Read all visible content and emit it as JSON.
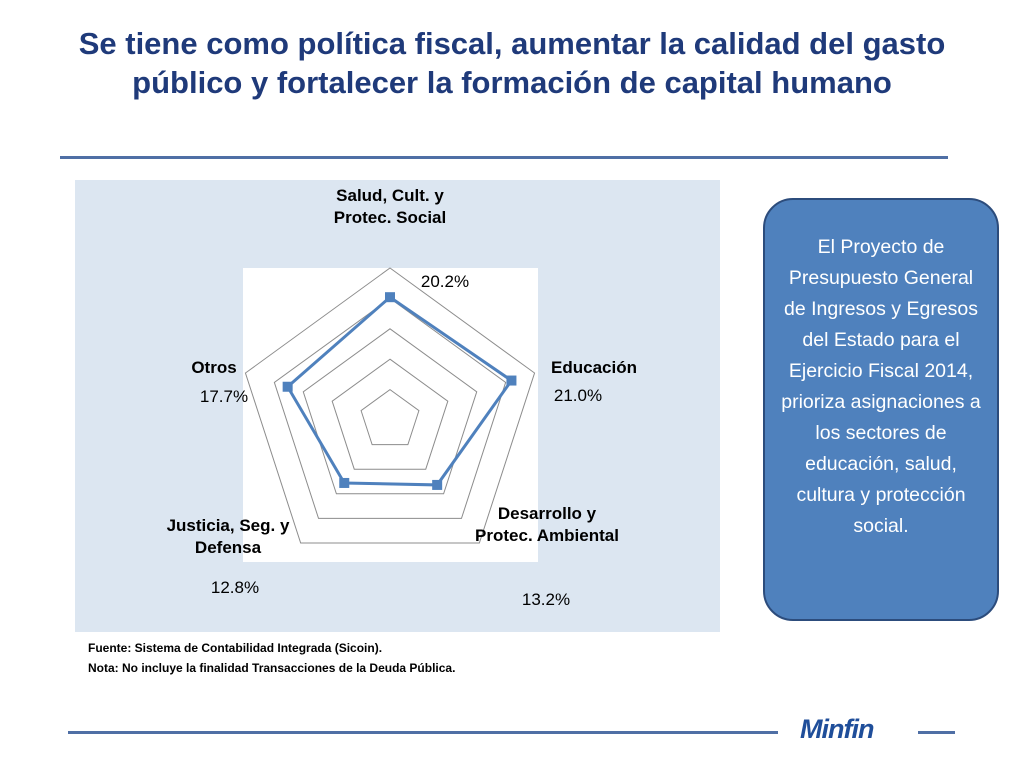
{
  "header": {
    "title": "Se tiene como política fiscal, aumentar la calidad del gasto público y fortalecer la formación de capital humano"
  },
  "chart_data": {
    "type": "radar",
    "categories": [
      "Salud, Cult. y Protec. Social",
      "Educación",
      "Desarrollo y Protec. Ambiental",
      "Justicia, Seg. y Defensa",
      "Otros"
    ],
    "values": [
      20.2,
      21.0,
      13.2,
      12.8,
      17.7
    ],
    "value_labels": [
      "20.2%",
      "21.0%",
      "13.2%",
      "12.8%",
      "17.7%"
    ],
    "color": "#4f81bd",
    "rlim": [
      0,
      25
    ],
    "rticks": [
      5,
      10,
      15,
      20,
      25
    ],
    "grid": true
  },
  "notes": [
    "Fuente: Sistema de Contabilidad Integrada (Sicoin).",
    "Nota: No incluye la finalidad Transacciones de la Deuda Pública."
  ],
  "callout": {
    "text": "El Proyecto de Presupuesto General de Ingresos y Egresos del Estado para el Ejercicio Fiscal 2014, prioriza asignaciones a los sectores de educación, salud, cultura y protección social."
  },
  "footer": {
    "brand": "Minfin"
  }
}
